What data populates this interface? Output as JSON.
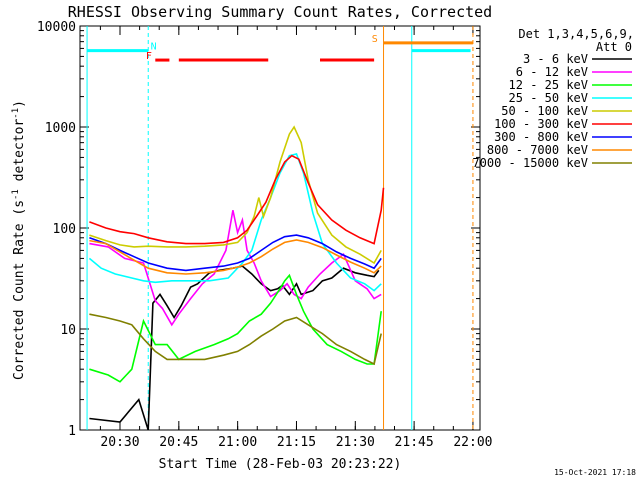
{
  "chart_data": {
    "type": "line",
    "title": "RHESSI Observing Summary Count Rates, Corrected",
    "xlabel": "Start Time (28-Feb-03 20:23:22)",
    "ylabel_main": "Corrected Count Rate (s",
    "ylabel_sup1": "-1",
    "ylabel_mid": " detector",
    "ylabel_sup2": "-1",
    "ylabel_end": ")",
    "timestamp": "15-Oct-2021 17:18",
    "y_scale": "log",
    "ylim": [
      1,
      10000
    ],
    "xlim_minutes": [
      20.33,
      22.03
    ],
    "x_ticks": [
      {
        "t": 20.5,
        "label": "20:30"
      },
      {
        "t": 20.75,
        "label": "20:45"
      },
      {
        "t": 21.0,
        "label": "21:00"
      },
      {
        "t": 21.25,
        "label": "21:15"
      },
      {
        "t": 21.5,
        "label": "21:30"
      },
      {
        "t": 21.75,
        "label": "21:45"
      },
      {
        "t": 22.0,
        "label": "22:00"
      }
    ],
    "y_ticks": [
      {
        "v": 1,
        "label": "1"
      },
      {
        "v": 10,
        "label": "10"
      },
      {
        "v": 100,
        "label": "100"
      },
      {
        "v": 1000,
        "label": "1000"
      },
      {
        "v": 10000,
        "label": "10000"
      }
    ],
    "legend": {
      "header1": "Det 1,3,4,5,6,9,",
      "header2": "Att 0",
      "position": "right"
    },
    "series": [
      {
        "name": "3 - 6 keV",
        "color": "#000000",
        "points": [
          [
            20.37,
            1.3
          ],
          [
            20.5,
            1.2
          ],
          [
            20.58,
            2
          ],
          [
            20.62,
            1
          ],
          [
            20.64,
            18
          ],
          [
            20.67,
            22
          ],
          [
            20.7,
            17
          ],
          [
            20.73,
            13
          ],
          [
            20.76,
            17
          ],
          [
            20.8,
            26
          ],
          [
            20.83,
            28
          ],
          [
            20.88,
            36
          ],
          [
            20.92,
            38
          ],
          [
            20.98,
            40
          ],
          [
            21.02,
            42
          ],
          [
            21.06,
            35
          ],
          [
            21.1,
            28
          ],
          [
            21.14,
            24
          ],
          [
            21.17,
            25
          ],
          [
            21.19,
            27
          ],
          [
            21.22,
            22
          ],
          [
            21.25,
            28
          ],
          [
            21.27,
            22
          ],
          [
            21.32,
            24
          ],
          [
            21.36,
            30
          ],
          [
            21.4,
            32
          ],
          [
            21.45,
            40
          ],
          [
            21.5,
            36
          ],
          [
            21.55,
            34
          ],
          [
            21.58,
            33
          ],
          [
            21.6,
            38
          ]
        ]
      },
      {
        "name": "6 - 12 keV",
        "color": "#ff00ff",
        "points": [
          [
            20.37,
            70
          ],
          [
            20.45,
            65
          ],
          [
            20.52,
            50
          ],
          [
            20.6,
            45
          ],
          [
            20.65,
            19
          ],
          [
            20.68,
            16
          ],
          [
            20.72,
            11
          ],
          [
            20.75,
            14
          ],
          [
            20.8,
            20
          ],
          [
            20.85,
            28
          ],
          [
            20.9,
            35
          ],
          [
            20.95,
            60
          ],
          [
            20.98,
            150
          ],
          [
            21.0,
            90
          ],
          [
            21.02,
            120
          ],
          [
            21.04,
            60
          ],
          [
            21.07,
            45
          ],
          [
            21.1,
            30
          ],
          [
            21.14,
            21
          ],
          [
            21.18,
            24
          ],
          [
            21.21,
            28
          ],
          [
            21.24,
            22
          ],
          [
            21.27,
            20
          ],
          [
            21.3,
            26
          ],
          [
            21.35,
            35
          ],
          [
            21.4,
            45
          ],
          [
            21.45,
            55
          ],
          [
            21.5,
            30
          ],
          [
            21.55,
            25
          ],
          [
            21.58,
            20
          ],
          [
            21.61,
            22
          ]
        ]
      },
      {
        "name": "12 - 25 keV",
        "color": "#00ff00",
        "points": [
          [
            20.37,
            4
          ],
          [
            20.45,
            3.5
          ],
          [
            20.5,
            3
          ],
          [
            20.55,
            4
          ],
          [
            20.6,
            12
          ],
          [
            20.65,
            7
          ],
          [
            20.7,
            7
          ],
          [
            20.75,
            5
          ],
          [
            20.82,
            6
          ],
          [
            20.9,
            7
          ],
          [
            20.96,
            8
          ],
          [
            21.0,
            9
          ],
          [
            21.05,
            12
          ],
          [
            21.1,
            14
          ],
          [
            21.14,
            18
          ],
          [
            21.18,
            25
          ],
          [
            21.2,
            30
          ],
          [
            21.22,
            34
          ],
          [
            21.25,
            22
          ],
          [
            21.28,
            15
          ],
          [
            21.32,
            10
          ],
          [
            21.38,
            7
          ],
          [
            21.44,
            6
          ],
          [
            21.5,
            5
          ],
          [
            21.55,
            4.5
          ],
          [
            21.58,
            4.5
          ],
          [
            21.61,
            15
          ]
        ]
      },
      {
        "name": "25 - 50 keV",
        "color": "#00ffff",
        "points": [
          [
            20.37,
            50
          ],
          [
            20.42,
            40
          ],
          [
            20.48,
            35
          ],
          [
            20.55,
            32
          ],
          [
            20.6,
            30
          ],
          [
            20.65,
            29
          ],
          [
            20.72,
            30
          ],
          [
            20.8,
            30
          ],
          [
            20.88,
            30
          ],
          [
            20.96,
            32
          ],
          [
            21.02,
            45
          ],
          [
            21.06,
            60
          ],
          [
            21.1,
            120
          ],
          [
            21.14,
            200
          ],
          [
            21.18,
            350
          ],
          [
            21.22,
            520
          ],
          [
            21.25,
            540
          ],
          [
            21.28,
            350
          ],
          [
            21.32,
            140
          ],
          [
            21.36,
            70
          ],
          [
            21.42,
            45
          ],
          [
            21.48,
            32
          ],
          [
            21.54,
            28
          ],
          [
            21.58,
            24
          ],
          [
            21.61,
            28
          ]
        ]
      },
      {
        "name": "50 - 100 keV",
        "color": "#cccc00",
        "points": [
          [
            20.37,
            85
          ],
          [
            20.44,
            75
          ],
          [
            20.5,
            68
          ],
          [
            20.56,
            65
          ],
          [
            20.62,
            66
          ],
          [
            20.7,
            65
          ],
          [
            20.78,
            65
          ],
          [
            20.86,
            66
          ],
          [
            20.94,
            68
          ],
          [
            21.0,
            72
          ],
          [
            21.04,
            90
          ],
          [
            21.07,
            130
          ],
          [
            21.09,
            200
          ],
          [
            21.11,
            130
          ],
          [
            21.14,
            200
          ],
          [
            21.18,
            450
          ],
          [
            21.22,
            850
          ],
          [
            21.24,
            1000
          ],
          [
            21.27,
            700
          ],
          [
            21.3,
            300
          ],
          [
            21.34,
            140
          ],
          [
            21.4,
            85
          ],
          [
            21.46,
            65
          ],
          [
            21.52,
            55
          ],
          [
            21.58,
            45
          ],
          [
            21.61,
            60
          ]
        ]
      },
      {
        "name": "100 - 300 keV",
        "color": "#ff0000",
        "points": [
          [
            20.37,
            115
          ],
          [
            20.44,
            100
          ],
          [
            20.5,
            92
          ],
          [
            20.56,
            88
          ],
          [
            20.62,
            80
          ],
          [
            20.7,
            73
          ],
          [
            20.78,
            70
          ],
          [
            20.86,
            70
          ],
          [
            20.94,
            72
          ],
          [
            21.0,
            80
          ],
          [
            21.04,
            95
          ],
          [
            21.08,
            130
          ],
          [
            21.12,
            180
          ],
          [
            21.16,
            300
          ],
          [
            21.2,
            450
          ],
          [
            21.23,
            520
          ],
          [
            21.26,
            480
          ],
          [
            21.3,
            280
          ],
          [
            21.34,
            170
          ],
          [
            21.4,
            120
          ],
          [
            21.46,
            95
          ],
          [
            21.52,
            80
          ],
          [
            21.58,
            70
          ],
          [
            21.61,
            150
          ],
          [
            21.62,
            250
          ]
        ]
      },
      {
        "name": "300 - 800 keV",
        "color": "#0000ff",
        "points": [
          [
            20.37,
            80
          ],
          [
            20.44,
            70
          ],
          [
            20.5,
            60
          ],
          [
            20.56,
            52
          ],
          [
            20.62,
            45
          ],
          [
            20.7,
            40
          ],
          [
            20.78,
            38
          ],
          [
            20.86,
            40
          ],
          [
            20.94,
            42
          ],
          [
            21.0,
            45
          ],
          [
            21.05,
            50
          ],
          [
            21.1,
            60
          ],
          [
            21.15,
            72
          ],
          [
            21.2,
            82
          ],
          [
            21.25,
            85
          ],
          [
            21.3,
            80
          ],
          [
            21.36,
            70
          ],
          [
            21.42,
            58
          ],
          [
            21.48,
            50
          ],
          [
            21.54,
            44
          ],
          [
            21.58,
            40
          ],
          [
            21.61,
            50
          ]
        ]
      },
      {
        "name": "800 - 7000 keV",
        "color": "#ff8800",
        "points": [
          [
            20.37,
            75
          ],
          [
            20.44,
            70
          ],
          [
            20.5,
            58
          ],
          [
            20.56,
            48
          ],
          [
            20.62,
            40
          ],
          [
            20.7,
            36
          ],
          [
            20.78,
            35
          ],
          [
            20.86,
            36
          ],
          [
            20.94,
            38
          ],
          [
            21.0,
            41
          ],
          [
            21.05,
            45
          ],
          [
            21.1,
            52
          ],
          [
            21.15,
            62
          ],
          [
            21.2,
            72
          ],
          [
            21.25,
            76
          ],
          [
            21.3,
            72
          ],
          [
            21.36,
            64
          ],
          [
            21.42,
            54
          ],
          [
            21.48,
            46
          ],
          [
            21.54,
            40
          ],
          [
            21.58,
            36
          ],
          [
            21.61,
            42
          ]
        ]
      },
      {
        "name": "7000 - 15000 keV",
        "color": "#808000",
        "points": [
          [
            20.37,
            14
          ],
          [
            20.44,
            13
          ],
          [
            20.5,
            12
          ],
          [
            20.55,
            11
          ],
          [
            20.6,
            8
          ],
          [
            20.65,
            6
          ],
          [
            20.7,
            5
          ],
          [
            20.78,
            5
          ],
          [
            20.86,
            5
          ],
          [
            20.94,
            5.5
          ],
          [
            21.0,
            6
          ],
          [
            21.05,
            7
          ],
          [
            21.1,
            8.5
          ],
          [
            21.15,
            10
          ],
          [
            21.2,
            12
          ],
          [
            21.25,
            13
          ],
          [
            21.3,
            11
          ],
          [
            21.36,
            9
          ],
          [
            21.42,
            7
          ],
          [
            21.48,
            6
          ],
          [
            21.54,
            5
          ],
          [
            21.58,
            4.5
          ],
          [
            21.61,
            9
          ]
        ]
      }
    ],
    "annotations": {
      "vertical_lines": [
        {
          "t": 20.36,
          "color": "#00ffff",
          "style": "solid"
        },
        {
          "t": 20.62,
          "color": "#00ffff",
          "style": "dashed"
        },
        {
          "t": 21.62,
          "color": "#ff8800",
          "style": "solid"
        },
        {
          "t": 21.74,
          "color": "#00ffff",
          "style": "solid"
        },
        {
          "t": 22.0,
          "color": "#ff8800",
          "style": "dashed"
        }
      ],
      "bars": [
        {
          "t0": 20.36,
          "t1": 20.62,
          "y": 5700,
          "color": "#00ffff",
          "label": "N",
          "label_color": "#00ffff",
          "label_t": 20.63
        },
        {
          "t0": 21.74,
          "t1": 21.99,
          "y": 5700,
          "color": "#00ffff",
          "label": "",
          "label_color": "#00ffff",
          "label_t": 21.74
        },
        {
          "t0": 21.62,
          "t1": 22.0,
          "y": 6800,
          "color": "#ff8800",
          "label": "S",
          "label_color": "#ff8800",
          "label_t": 21.57
        },
        {
          "t0": 20.65,
          "t1": 20.71,
          "y": 4600,
          "color": "#ff0000",
          "label": "F",
          "label_color": "#ff0000",
          "label_t": 20.61
        },
        {
          "t0": 20.75,
          "t1": 21.13,
          "y": 4600,
          "color": "#ff0000",
          "label": "",
          "label_color": "#ff0000",
          "label_t": 20.75
        },
        {
          "t0": 21.35,
          "t1": 21.58,
          "y": 4600,
          "color": "#ff0000",
          "label": "",
          "label_color": "#ff0000",
          "label_t": 21.35
        }
      ]
    }
  }
}
